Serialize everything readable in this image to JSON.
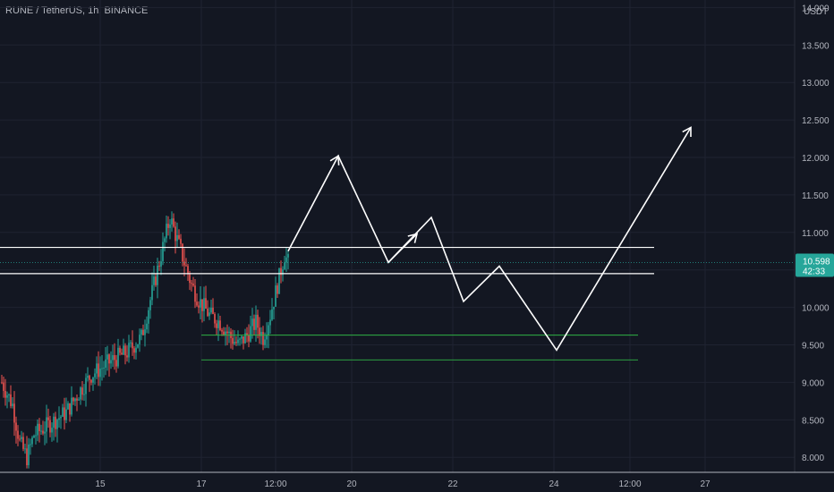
{
  "header": {
    "title": "RUNE / TetherUS, 1h, BINANCE"
  },
  "price_scale": {
    "currency": "USDT",
    "last_price": "10.598",
    "countdown": "42:33"
  },
  "colors": {
    "background": "#131722",
    "grid": "#1f2331",
    "up": "#26a69a",
    "down": "#ef5350",
    "level_white": "#ffffff",
    "level_green": "#2fb344",
    "badge": "#26a69a"
  },
  "chart_data": {
    "type": "candlestick",
    "title": "RUNE / TetherUS, 1h, BINANCE",
    "xlabel": "",
    "ylabel": "",
    "ylim": [
      7.8,
      14.1
    ],
    "y_ticks": [
      "14.000",
      "13.500",
      "13.000",
      "12.500",
      "12.000",
      "11.500",
      "11.000",
      "10.500",
      "10.000",
      "9.500",
      "9.000",
      "8.500",
      "8.000"
    ],
    "x_ticks": [
      "15",
      "17",
      "12:00",
      "20",
      "22",
      "24",
      "12:00",
      "27"
    ],
    "grid": true,
    "price_series_control_points": [
      [
        0,
        9.0
      ],
      [
        6,
        8.7
      ],
      [
        10,
        8.2
      ],
      [
        14,
        8.0
      ],
      [
        18,
        8.3
      ],
      [
        24,
        8.4
      ],
      [
        30,
        8.5
      ],
      [
        36,
        8.6
      ],
      [
        44,
        8.9
      ],
      [
        50,
        9.1
      ],
      [
        56,
        9.2
      ],
      [
        62,
        9.3
      ],
      [
        70,
        9.4
      ],
      [
        78,
        9.6
      ],
      [
        84,
        10.2
      ],
      [
        90,
        10.8
      ],
      [
        94,
        11.2
      ],
      [
        98,
        10.9
      ],
      [
        102,
        10.6
      ],
      [
        106,
        10.3
      ],
      [
        110,
        10.1
      ],
      [
        116,
        9.9
      ],
      [
        122,
        9.8
      ],
      [
        128,
        9.6
      ],
      [
        132,
        9.5
      ],
      [
        136,
        9.6
      ],
      [
        142,
        9.8
      ],
      [
        146,
        9.6
      ],
      [
        150,
        9.9
      ],
      [
        154,
        10.3
      ],
      [
        158,
        10.7
      ],
      [
        160,
        10.6
      ]
    ],
    "horizontal_levels": [
      {
        "value": 10.8,
        "color": "white",
        "span": "full"
      },
      {
        "value": 10.45,
        "color": "white",
        "span": "full"
      },
      {
        "value": 9.63,
        "color": "green",
        "span": "partial"
      },
      {
        "value": 9.3,
        "color": "green",
        "span": "partial"
      }
    ],
    "projection_path": [
      [
        160,
        10.75
      ],
      [
        188,
        12.02
      ],
      [
        216,
        10.6
      ],
      [
        240,
        11.2
      ],
      [
        258,
        10.08
      ],
      [
        278,
        10.55
      ],
      [
        310,
        9.43
      ],
      [
        385,
        12.4
      ]
    ],
    "small_arrow": {
      "from": [
        216,
        10.6
      ],
      "to": [
        232,
        10.98
      ]
    },
    "last_price_value": 10.598
  }
}
